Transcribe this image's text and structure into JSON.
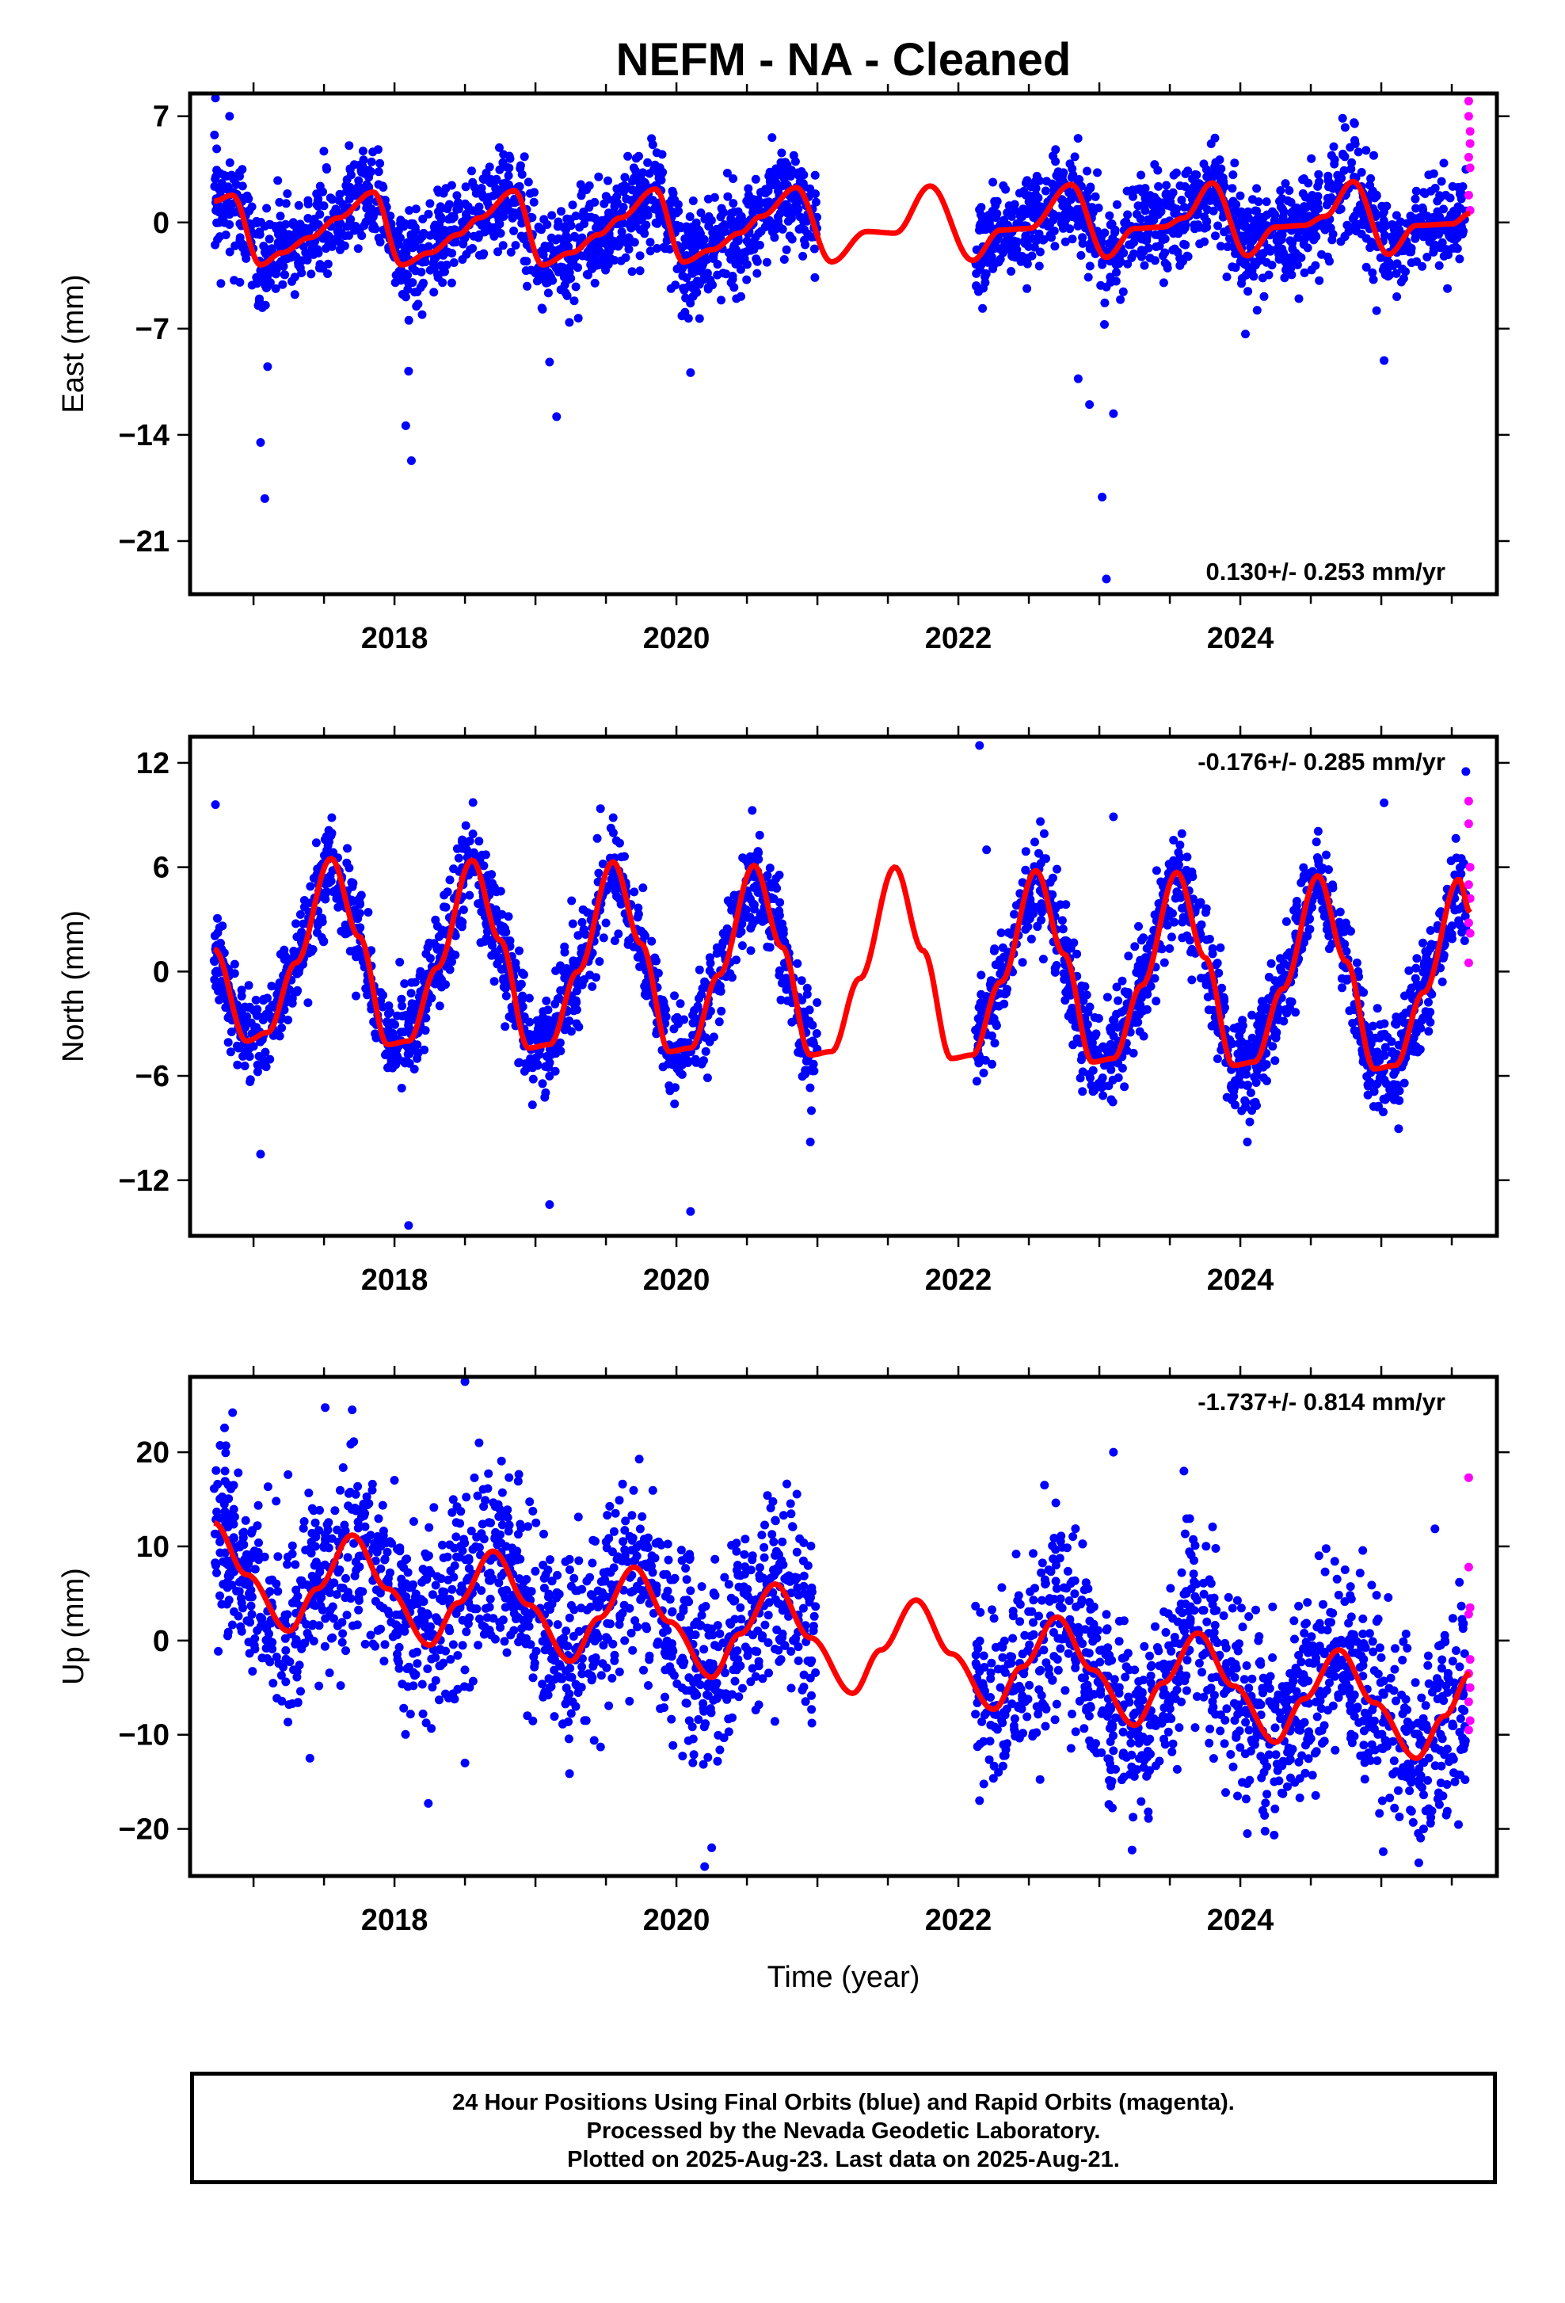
{
  "title": "NEFM  - NA - Cleaned",
  "colors": {
    "final": "#0000ff",
    "rapid": "#ff00ff",
    "model": "#ff0000"
  },
  "footer": {
    "line1": "24 Hour Positions Using Final Orbits (blue) and Rapid Orbits (magenta).",
    "line2": "Processed by the Nevada Geodetic Laboratory.",
    "line3": "Plotted on 2025-Aug-23. Last data on 2025-Aug-21."
  },
  "chart_data": [
    {
      "type": "scatter",
      "component": "east",
      "title": "",
      "xlabel": "",
      "ylabel": "East (mm)",
      "xlim": [
        2016.55,
        2025.82
      ],
      "ylim": [
        -24.5,
        8.5
      ],
      "x_ticks": [
        "2018",
        "2020",
        "2022",
        "2024"
      ],
      "y_ticks": [
        "7",
        "0",
        "−7",
        "−14",
        "−21"
      ],
      "y_tick_values": [
        7,
        0,
        -7,
        -14,
        -21
      ],
      "grid": false,
      "rate_label": "0.130+/- 0.253 mm/yr",
      "rate_position": "bottom-right",
      "series": [
        {
          "role": "final",
          "color": "#0000ff",
          "spans": [
            [
              2016.72,
              2021.0
            ],
            [
              2022.12,
              2023.55
            ],
            [
              2023.55,
              2025.6
            ]
          ],
          "baseline": -0.3,
          "noise": 1.6,
          "seasonal_amp": 2.0,
          "outliers": [
            [
              2016.73,
              8.2
            ],
            [
              2016.83,
              7.0
            ],
            [
              2016.92,
              3.5
            ],
            [
              2017.05,
              -14.5
            ],
            [
              2017.08,
              -18.2
            ],
            [
              2017.1,
              -9.5
            ],
            [
              2018.12,
              -15.7
            ],
            [
              2018.1,
              -9.8
            ],
            [
              2018.08,
              -13.4
            ],
            [
              2019.15,
              -12.8
            ],
            [
              2019.1,
              -9.2
            ],
            [
              2020.1,
              -9.9
            ],
            [
              2022.85,
              -10.3
            ],
            [
              2022.93,
              -12.0
            ],
            [
              2023.02,
              -18.1
            ],
            [
              2023.05,
              -23.5
            ],
            [
              2023.1,
              -12.6
            ],
            [
              2025.02,
              -9.1
            ],
            [
              2025.6,
              3.5
            ]
          ]
        },
        {
          "role": "rapid",
          "color": "#ff00ff",
          "points": [
            [
              2025.62,
              8.0
            ],
            [
              2025.62,
              7.0
            ],
            [
              2025.63,
              6.0
            ],
            [
              2025.63,
              5.2
            ],
            [
              2025.62,
              4.3
            ],
            [
              2025.63,
              3.6
            ],
            [
              2025.62,
              1.8
            ],
            [
              2025.63,
              0.8
            ]
          ]
        }
      ],
      "model": {
        "color": "#ff0000",
        "description": "annual + semiannual fit",
        "x": [
          2016.72,
          2016.85,
          2017.05,
          2017.2,
          2017.4,
          2017.6,
          2017.85,
          2018.05,
          2018.25,
          2018.45,
          2018.6,
          2018.85,
          2019.05,
          2019.25,
          2019.45,
          2019.6,
          2019.85,
          2020.05,
          2020.25,
          2020.45,
          2020.6,
          2020.85,
          2021.1,
          2021.35,
          2021.55,
          2021.8,
          2022.1,
          2022.3,
          2022.5,
          2022.8,
          2023.05,
          2023.25,
          2023.45,
          2023.6,
          2023.8,
          2024.05,
          2024.25,
          2024.45,
          2024.6,
          2024.8,
          2025.05,
          2025.25,
          2025.5,
          2025.63
        ],
        "y": [
          1.4,
          1.8,
          -2.8,
          -2.0,
          -1.0,
          0.3,
          2.0,
          -2.8,
          -2.0,
          -0.8,
          0.3,
          2.1,
          -2.8,
          -2.0,
          -0.8,
          0.3,
          2.2,
          -2.6,
          -1.8,
          -0.7,
          0.4,
          2.3,
          -2.6,
          -0.6,
          -0.7,
          2.4,
          -2.5,
          -0.5,
          -0.4,
          2.5,
          -2.3,
          -0.4,
          -0.3,
          0.3,
          2.6,
          -2.2,
          -0.3,
          -0.2,
          0.4,
          2.7,
          -2.1,
          -0.2,
          -0.1,
          0.6
        ]
      }
    },
    {
      "type": "scatter",
      "component": "north",
      "title": "",
      "xlabel": "",
      "ylabel": "North (mm)",
      "xlim": [
        2016.55,
        2025.82
      ],
      "ylim": [
        -15.2,
        13.5
      ],
      "x_ticks": [
        "2018",
        "2020",
        "2022",
        "2024"
      ],
      "y_ticks": [
        "12",
        "6",
        "0",
        "−6",
        "−12"
      ],
      "y_tick_values": [
        12,
        6,
        0,
        -6,
        -12
      ],
      "grid": false,
      "rate_label": "-0.176+/- 0.285 mm/yr",
      "rate_position": "top-right",
      "series": [
        {
          "role": "final",
          "color": "#0000ff",
          "spans": [
            [
              2016.72,
              2021.0
            ],
            [
              2022.12,
              2023.55
            ],
            [
              2023.55,
              2025.6
            ]
          ],
          "baseline": 0.6,
          "noise": 1.4,
          "seasonal_amp": 6.2,
          "outliers": [
            [
              2016.73,
              9.6
            ],
            [
              2017.05,
              -10.5
            ],
            [
              2018.1,
              -14.6
            ],
            [
              2019.1,
              -13.4
            ],
            [
              2020.1,
              -13.8
            ],
            [
              2020.95,
              -9.8
            ],
            [
              2022.15,
              13.0
            ],
            [
              2022.2,
              7.0
            ],
            [
              2023.1,
              8.9
            ],
            [
              2024.05,
              -9.8
            ],
            [
              2025.02,
              9.7
            ],
            [
              2025.6,
              11.5
            ]
          ]
        },
        {
          "role": "rapid",
          "color": "#ff00ff",
          "points": [
            [
              2025.62,
              9.8
            ],
            [
              2025.62,
              8.5
            ],
            [
              2025.63,
              6.0
            ],
            [
              2025.62,
              5.0
            ],
            [
              2025.63,
              4.2
            ],
            [
              2025.62,
              2.8
            ],
            [
              2025.63,
              2.2
            ],
            [
              2025.62,
              0.5
            ]
          ]
        }
      ],
      "model": {
        "color": "#ff0000",
        "description": "annual + semiannual fit",
        "x": [
          2016.72,
          2016.95,
          2017.1,
          2017.3,
          2017.55,
          2017.75,
          2017.95,
          2018.1,
          2018.3,
          2018.55,
          2018.75,
          2018.95,
          2019.1,
          2019.3,
          2019.55,
          2019.75,
          2019.95,
          2020.1,
          2020.3,
          2020.55,
          2020.75,
          2020.95,
          2021.1,
          2021.3,
          2021.55,
          2021.75,
          2021.95,
          2022.1,
          2022.3,
          2022.55,
          2022.75,
          2022.95,
          2023.1,
          2023.3,
          2023.55,
          2023.75,
          2023.95,
          2024.1,
          2024.3,
          2024.55,
          2024.75,
          2024.95,
          2025.1,
          2025.3,
          2025.55,
          2025.63
        ],
        "y": [
          1.3,
          -4.0,
          -3.5,
          0.5,
          6.5,
          2.0,
          -4.2,
          -4.0,
          0.2,
          6.4,
          1.8,
          -4.4,
          -4.2,
          0.0,
          6.3,
          1.6,
          -4.6,
          -4.4,
          -0.2,
          6.1,
          1.4,
          -4.8,
          -4.6,
          -0.4,
          6.0,
          1.2,
          -5.0,
          -4.8,
          -0.6,
          5.8,
          1.0,
          -5.2,
          -5.0,
          -0.8,
          5.7,
          0.8,
          -5.4,
          -5.2,
          -1.0,
          5.5,
          0.6,
          -5.6,
          -5.4,
          -1.2,
          5.3,
          3.4
        ]
      }
    },
    {
      "type": "scatter",
      "component": "up",
      "title": "",
      "xlabel": "Time (year)",
      "ylabel": "Up (mm)",
      "xlim": [
        2016.55,
        2025.82
      ],
      "ylim": [
        -25,
        28
      ],
      "x_ticks": [
        "2018",
        "2020",
        "2022",
        "2024"
      ],
      "y_ticks": [
        "20",
        "10",
        "0",
        "−10",
        "−20"
      ],
      "y_tick_values": [
        20,
        10,
        0,
        -10,
        -20
      ],
      "grid": false,
      "rate_label": "-1.737+/- 0.814 mm/yr",
      "rate_position": "top-right",
      "series": [
        {
          "role": "final",
          "color": "#0000ff",
          "spans": [
            [
              2016.72,
              2021.0
            ],
            [
              2022.12,
              2023.55
            ],
            [
              2023.55,
              2025.6
            ]
          ],
          "baseline": 5.0,
          "noise": 5.0,
          "seasonal_amp": 5.5,
          "trend": -1.737,
          "outliers": [
            [
              2018.5,
              27.5
            ],
            [
              2017.7,
              24.5
            ],
            [
              2018.6,
              21.0
            ],
            [
              2020.2,
              -24.0
            ],
            [
              2020.25,
              -22.0
            ],
            [
              2023.1,
              20.0
            ],
            [
              2023.6,
              18.0
            ],
            [
              2024.05,
              -20.5
            ],
            [
              2017.4,
              -12.5
            ],
            [
              2018.5,
              -13.0
            ],
            [
              2022.15,
              -17.0
            ],
            [
              2025.3,
              -20.0
            ]
          ]
        },
        {
          "role": "rapid",
          "color": "#ff00ff",
          "points": [
            [
              2025.62,
              17.3
            ],
            [
              2025.62,
              7.8
            ],
            [
              2025.63,
              3.5
            ],
            [
              2025.62,
              2.8
            ],
            [
              2025.63,
              -2.0
            ],
            [
              2025.62,
              -3.5
            ],
            [
              2025.63,
              -5.0
            ],
            [
              2025.62,
              -6.5
            ],
            [
              2025.63,
              -8.5
            ],
            [
              2025.62,
              -9.5
            ]
          ]
        }
      ],
      "model": {
        "color": "#ff0000",
        "description": "annual + semiannual fit with trend",
        "x": [
          2016.72,
          2016.95,
          2017.25,
          2017.45,
          2017.7,
          2017.95,
          2018.25,
          2018.45,
          2018.7,
          2018.95,
          2019.25,
          2019.45,
          2019.7,
          2019.95,
          2020.25,
          2020.45,
          2020.7,
          2020.95,
          2021.25,
          2021.45,
          2021.7,
          2021.95,
          2022.25,
          2022.45,
          2022.7,
          2022.95,
          2023.25,
          2023.45,
          2023.7,
          2023.95,
          2024.25,
          2024.45,
          2024.7,
          2024.95,
          2025.25,
          2025.45,
          2025.63
        ],
        "y": [
          12.5,
          7.0,
          1.0,
          5.5,
          11.2,
          5.5,
          -0.5,
          4.0,
          9.5,
          3.8,
          -2.2,
          2.4,
          7.8,
          2.0,
          -3.9,
          0.7,
          6.0,
          0.3,
          -5.6,
          -1.0,
          4.3,
          -1.4,
          -7.3,
          -2.8,
          2.5,
          -3.1,
          -9.0,
          -4.5,
          0.8,
          -4.8,
          -10.8,
          -6.2,
          -1.0,
          -6.6,
          -12.5,
          -8.0,
          -3.5
        ]
      }
    }
  ]
}
